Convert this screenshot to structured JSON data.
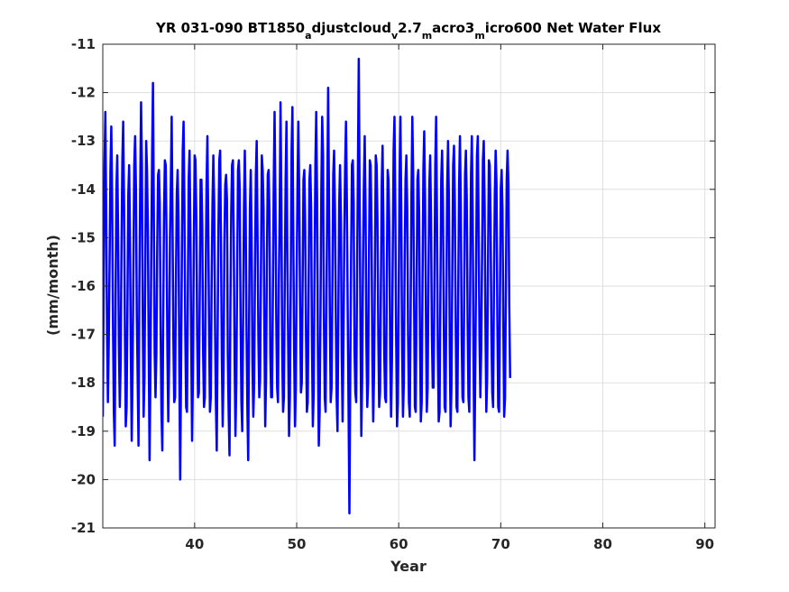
{
  "chart_data": {
    "type": "line",
    "title_parts": [
      {
        "text": "YR 031-090 BT1850",
        "sub": false
      },
      {
        "text": "a",
        "sub": true
      },
      {
        "text": "djustcloud",
        "sub": false
      },
      {
        "text": "v",
        "sub": true
      },
      {
        "text": "2.7",
        "sub": false
      },
      {
        "text": "m",
        "sub": true
      },
      {
        "text": "acro3",
        "sub": false
      },
      {
        "text": "m",
        "sub": true
      },
      {
        "text": "icro600 Net Water Flux",
        "sub": false
      }
    ],
    "xlabel": "Year",
    "ylabel": "(mm/month)",
    "xlim": [
      31,
      91
    ],
    "ylim": [
      -21,
      -11
    ],
    "xticks": [
      40,
      50,
      60,
      70,
      80,
      90
    ],
    "yticks": [
      -21,
      -20,
      -19,
      -18,
      -17,
      -16,
      -15,
      -14,
      -13,
      -12,
      -11
    ],
    "grid": true,
    "line_color": "#0000ff",
    "x_start": 31,
    "x_step": 0.08333333,
    "series": [
      {
        "values": [
          -18.7,
          -16.2,
          -13.5,
          -12.4,
          -14.5,
          -17.0,
          -18.4,
          -17.2,
          -15.5,
          -13.6,
          -12.7,
          -14.2,
          -16.8,
          -18.6,
          -19.3,
          -16.3,
          -14.0,
          -13.3,
          -14.9,
          -17.3,
          -18.5,
          -17.6,
          -15.2,
          -13.4,
          -12.6,
          -14.3,
          -16.9,
          -18.9,
          -18.5,
          -16.4,
          -14.1,
          -13.5,
          -15.0,
          -17.4,
          -19.2,
          -17.8,
          -15.6,
          -13.5,
          -12.9,
          -14.0,
          -16.6,
          -17.9,
          -19.3,
          -16.1,
          -14.0,
          -12.2,
          -13.5,
          -16.7,
          -18.7,
          -17.9,
          -15.6,
          -13.0,
          -13.6,
          -14.8,
          -17.3,
          -19.6,
          -17.8,
          -15.3,
          -13.3,
          -11.8,
          -14.4,
          -17.4,
          -18.3,
          -17.4,
          -15.2,
          -13.7,
          -13.6,
          -14.3,
          -16.9,
          -18.6,
          -19.4,
          -16.8,
          -14.5,
          -13.4,
          -13.5,
          -15.0,
          -17.4,
          -18.8,
          -17.5,
          -15.0,
          -13.9,
          -12.5,
          -14.7,
          -17.1,
          -18.4,
          -18.3,
          -16.0,
          -14.1,
          -13.6,
          -14.6,
          -17.7,
          -20.0,
          -17.8,
          -15.4,
          -13.2,
          -12.6,
          -14.4,
          -16.9,
          -18.5,
          -18.6,
          -16.2,
          -13.8,
          -13.2,
          -14.8,
          -17.2,
          -19.2,
          -17.8,
          -15.3,
          -13.3,
          -13.4,
          -14.6,
          -17.0,
          -18.3,
          -18.2,
          -16.2,
          -13.8,
          -13.8,
          -14.8,
          -17.4,
          -18.5,
          -18.3,
          -15.9,
          -13.9,
          -12.9,
          -14.7,
          -16.9,
          -18.6,
          -18.3,
          -16.0,
          -14.3,
          -13.3,
          -14.3,
          -16.8,
          -18.4,
          -19.4,
          -17.1,
          -14.8,
          -13.4,
          -13.2,
          -15.1,
          -17.5,
          -18.9,
          -17.7,
          -15.1,
          -13.9,
          -13.7,
          -14.2,
          -17.4,
          -18.6,
          -19.5,
          -16.6,
          -14.5,
          -13.5,
          -13.4,
          -15.0,
          -17.5,
          -19.1,
          -18.0,
          -15.8,
          -13.6,
          -13.4,
          -14.0,
          -16.6,
          -18.4,
          -19.0,
          -16.7,
          -14.4,
          -13.2,
          -14.4,
          -16.9,
          -18.5,
          -19.6,
          -16.8,
          -14.4,
          -13.6,
          -14.9,
          -17.6,
          -18.7,
          -18.0,
          -15.6,
          -13.7,
          -13.0,
          -15.0,
          -17.1,
          -18.3,
          -17.9,
          -15.7,
          -13.3,
          -13.6,
          -14.4,
          -16.8,
          -18.9,
          -17.9,
          -15.4,
          -13.7,
          -13.6,
          -14.5,
          -17.4,
          -18.3,
          -18.3,
          -16.2,
          -13.9,
          -12.4,
          -14.2,
          -16.7,
          -18.1,
          -18.4,
          -16.0,
          -14.5,
          -12.2,
          -14.3,
          -17.4,
          -18.6,
          -18.3,
          -15.9,
          -13.8,
          -12.6,
          -15.2,
          -17.2,
          -19.1,
          -18.3,
          -16.0,
          -13.2,
          -12.3,
          -14.8,
          -17.3,
          -18.9,
          -18.1,
          -15.8,
          -13.9,
          -12.6,
          -14.1,
          -16.4,
          -18.2,
          -18.0,
          -15.9,
          -13.8,
          -13.6,
          -14.7,
          -17.0,
          -18.6,
          -18.4,
          -16.1,
          -13.8,
          -13.5,
          -14.4,
          -17.2,
          -18.9,
          -18.2,
          -15.8,
          -13.5,
          -12.4,
          -14.2,
          -17.4,
          -19.3,
          -18.6,
          -16.6,
          -14.0,
          -12.5,
          -13.3,
          -16.6,
          -18.3,
          -18.6,
          -16.3,
          -14.1,
          -11.9,
          -14.1,
          -16.6,
          -18.4,
          -18.1,
          -16.1,
          -13.7,
          -13.2,
          -14.4,
          -16.6,
          -18.3,
          -19.0,
          -16.6,
          -14.3,
          -13.5,
          -14.6,
          -17.4,
          -18.8,
          -17.2,
          -15.0,
          -13.5,
          -12.6,
          -14.2,
          -16.5,
          -18.5,
          -20.7,
          -17.8,
          -15.4,
          -13.5,
          -13.4,
          -14.3,
          -17.3,
          -18.2,
          -18.4,
          -15.8,
          -13.6,
          -11.3,
          -14.0,
          -16.8,
          -19.1,
          -17.9,
          -15.5,
          -13.9,
          -12.9,
          -14.4,
          -17.2,
          -18.5,
          -18.0,
          -15.5,
          -13.4,
          -13.5,
          -14.8,
          -17.5,
          -18.8,
          -17.8,
          -15.7,
          -13.3,
          -13.5,
          -14.6,
          -17.0,
          -18.5,
          -18.2,
          -16.1,
          -13.9,
          -13.1,
          -14.7,
          -17.4,
          -18.3,
          -18.4,
          -15.9,
          -13.6,
          -13.8,
          -14.9,
          -17.5,
          -18.7,
          -17.6,
          -15.3,
          -13.2,
          -12.5,
          -14.4,
          -17.1,
          -18.9,
          -18.4,
          -16.2,
          -13.7,
          -12.5,
          -14.4,
          -17.3,
          -18.7,
          -18.0,
          -15.5,
          -13.8,
          -13.3,
          -14.4,
          -17.0,
          -18.4,
          -18.7,
          -16.6,
          -14.1,
          -12.5,
          -13.7,
          -16.1,
          -18.5,
          -18.6,
          -16.2,
          -13.8,
          -13.6,
          -14.5,
          -17.0,
          -18.8,
          -18.4,
          -15.9,
          -13.6,
          -12.8,
          -14.2,
          -16.6,
          -18.6,
          -18.1,
          -15.8,
          -13.9,
          -13.3,
          -14.6,
          -17.0,
          -18.1,
          -18.1,
          -16.0,
          -13.5,
          -12.5,
          -14.6,
          -17.3,
          -18.8,
          -18.6,
          -16.2,
          -13.8,
          -13.2,
          -14.3,
          -16.8,
          -18.5,
          -18.6,
          -16.4,
          -13.9,
          -13.0,
          -14.2,
          -17.2,
          -18.9,
          -18.1,
          -15.7,
          -13.5,
          -13.1,
          -14.3,
          -16.8,
          -18.5,
          -18.6,
          -16.1,
          -13.9,
          -12.9,
          -14.3,
          -17.0,
          -18.3,
          -18.4,
          -16.2,
          -13.7,
          -13.2,
          -14.2,
          -16.7,
          -18.3,
          -18.6,
          -16.1,
          -13.7,
          -12.9,
          -14.6,
          -17.6,
          -19.6,
          -17.8,
          -15.6,
          -13.3,
          -12.9,
          -14.8,
          -17.1,
          -18.3,
          -17.3,
          -15.4,
          -13.4,
          -13.0,
          -14.3,
          -16.8,
          -18.6,
          -17.9,
          -15.6,
          -13.4,
          -13.5,
          -14.6,
          -17.0,
          -18.2,
          -18.5,
          -15.9,
          -14.1,
          -13.2,
          -13.9,
          -16.7,
          -18.5,
          -18.6,
          -16.3,
          -14.0,
          -13.6,
          -14.4,
          -16.8,
          -18.7,
          -18.3,
          -16.1,
          -13.8,
          -13.2,
          -13.9,
          -16.4,
          -17.9
        ]
      }
    ]
  }
}
